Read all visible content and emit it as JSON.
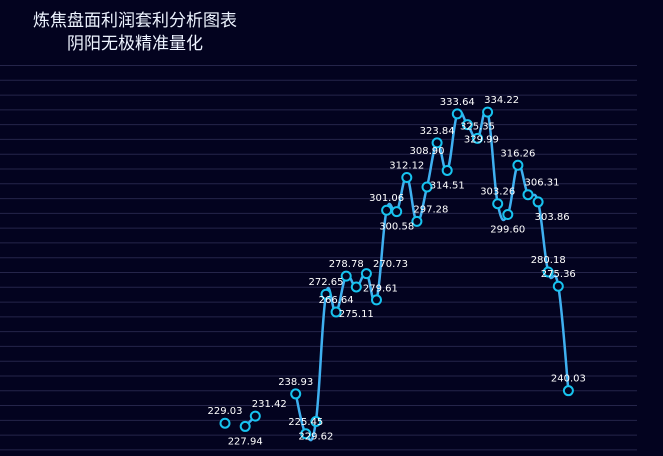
{
  "chart_data": {
    "type": "line",
    "title": "炼焦盘面利润套利分析图表",
    "subtitle": "阴阳无极精准量化",
    "xlabel": "",
    "ylabel": "",
    "ylim": [
      230,
      350
    ],
    "grid": true,
    "smooth": true,
    "colors": {
      "background": "#03031f",
      "line": "#3fb0f0",
      "marker": "#17c3ef",
      "grid": "#25254a",
      "label": "#ffffff"
    },
    "values": [
      229.03,
      null,
      227.94,
      231.42,
      null,
      null,
      null,
      238.93,
      225.45,
      229.62,
      272.65,
      266.64,
      278.78,
      275.11,
      279.61,
      270.73,
      301.06,
      300.58,
      312.12,
      297.28,
      308.9,
      323.84,
      314.51,
      333.64,
      329.99,
      325.35,
      334.22,
      303.26,
      299.6,
      316.26,
      306.31,
      303.86,
      280.18,
      275.36,
      240.03
    ]
  }
}
